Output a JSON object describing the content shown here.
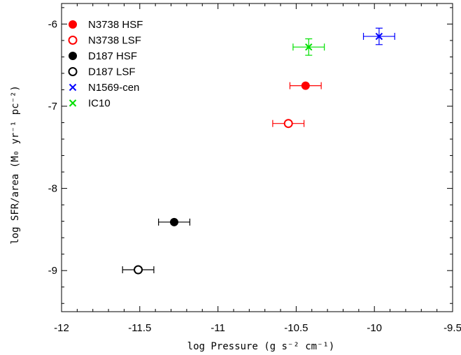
{
  "chart_data": {
    "type": "scatter",
    "xlabel": "log Pressure (g s⁻² cm⁻¹)",
    "ylabel": "log SFR/area (M₀ yr⁻¹ pc⁻²)",
    "xlim": [
      -12,
      -9.5
    ],
    "ylim": [
      -9.5,
      -5.75
    ],
    "x_ticks": [
      -12,
      -11.5,
      -11,
      -10.5,
      -10,
      -9.5
    ],
    "x_tick_labels": [
      "-12",
      "-11.5",
      "-11",
      "-10.5",
      "-10",
      "-9.5"
    ],
    "y_ticks": [
      -9,
      -8,
      -7,
      -6
    ],
    "y_tick_labels": [
      "-9",
      "-8",
      "-7",
      "-6"
    ],
    "grid": false,
    "legend_position": "top-left",
    "series": [
      {
        "name": "N3738 HSF",
        "color": "#ff0000",
        "marker": "filled-circle",
        "points": [
          {
            "x": -10.44,
            "y": -6.75,
            "xerr": 0.1,
            "yerr": 0
          }
        ]
      },
      {
        "name": "N3738 LSF",
        "color": "#ff0000",
        "marker": "open-circle",
        "points": [
          {
            "x": -10.55,
            "y": -7.21,
            "xerr": 0.1,
            "yerr": 0
          }
        ]
      },
      {
        "name": "D187 HSF",
        "color": "#000000",
        "marker": "filled-circle",
        "points": [
          {
            "x": -11.28,
            "y": -8.41,
            "xerr": 0.1,
            "yerr": 0
          }
        ]
      },
      {
        "name": "D187 LSF",
        "color": "#000000",
        "marker": "open-circle",
        "points": [
          {
            "x": -11.51,
            "y": -8.99,
            "xerr": 0.1,
            "yerr": 0
          }
        ]
      },
      {
        "name": "N1569-cen",
        "color": "#0000ff",
        "marker": "cross",
        "points": [
          {
            "x": -9.97,
            "y": -6.15,
            "xerr": 0.1,
            "yerr": 0.1
          }
        ]
      },
      {
        "name": "IC10",
        "color": "#00e000",
        "marker": "cross",
        "points": [
          {
            "x": -10.42,
            "y": -6.28,
            "xerr": 0.1,
            "yerr": 0.1
          }
        ]
      }
    ]
  }
}
